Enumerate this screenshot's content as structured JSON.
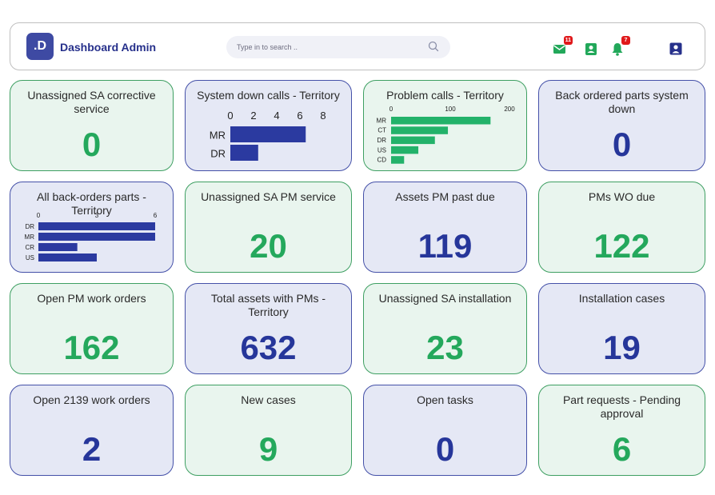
{
  "header": {
    "logo_text": ".D",
    "title": "Dashboard Admin",
    "search_placeholder": "Type in to search ..",
    "mail_badge": "11",
    "bell_badge": "7"
  },
  "colors": {
    "green": "#24a85c",
    "blue": "#26369a",
    "bar_blue": "#2b3aa0",
    "bar_green": "#23b26a",
    "badge": "#e0191b"
  },
  "icons": {
    "mail": "mail-icon",
    "contact": "contact-icon",
    "bell": "bell-icon",
    "user": "user-icon",
    "search": "search-icon"
  },
  "cards": [
    {
      "title": "Unassigned SA corrective service",
      "value": "0",
      "theme": "green"
    },
    {
      "title": "System down calls - Territory",
      "theme": "blue",
      "chart": 0
    },
    {
      "title": "Problem calls - Territory",
      "theme": "green",
      "chart": 1
    },
    {
      "title": "Back ordered parts system down",
      "value": "0",
      "theme": "blue"
    },
    {
      "title": "All back-orders parts - Territory",
      "theme": "blue",
      "chart": 2
    },
    {
      "title": "Unassigned SA PM service",
      "value": "20",
      "theme": "green"
    },
    {
      "title": "Assets PM past due",
      "value": "119",
      "theme": "blue"
    },
    {
      "title": "PMs WO due",
      "value": "122",
      "theme": "green"
    },
    {
      "title": "Open PM work orders",
      "value": "162",
      "theme": "green"
    },
    {
      "title": "Total assets with PMs - Territory",
      "value": "632",
      "theme": "blue"
    },
    {
      "title": "Unassigned SA installation",
      "value": "23",
      "theme": "green"
    },
    {
      "title": "Installation cases",
      "value": "19",
      "theme": "blue"
    },
    {
      "title": "Open 2139 work orders",
      "value": "2",
      "theme": "blue"
    },
    {
      "title": "New cases",
      "value": "9",
      "theme": "green"
    },
    {
      "title": "Open tasks",
      "value": "0",
      "theme": "blue"
    },
    {
      "title": "Part requests - Pending approval",
      "value": "6",
      "theme": "green"
    }
  ],
  "chart_data": [
    {
      "type": "bar",
      "orientation": "horizontal",
      "title": "System down calls - Territory",
      "categories": [
        "MR",
        "DR"
      ],
      "values": [
        6.5,
        2.4
      ],
      "xticks": [
        0,
        2,
        4,
        6,
        8
      ],
      "xlim": [
        0,
        8
      ],
      "color": "#2b3aa0"
    },
    {
      "type": "bar",
      "orientation": "horizontal",
      "title": "Problem calls - Territory",
      "categories": [
        "MR",
        "CT",
        "DR",
        "US",
        "CD"
      ],
      "values": [
        168,
        96,
        74,
        46,
        22
      ],
      "xticks": [
        0,
        100,
        200
      ],
      "xlim": [
        0,
        200
      ],
      "color": "#23b26a"
    },
    {
      "type": "bar",
      "orientation": "horizontal",
      "title": "All back-orders parts - Territory",
      "categories": [
        "DR",
        "MR",
        "CR",
        "US"
      ],
      "values": [
        6,
        6,
        2,
        3
      ],
      "xticks": [
        0,
        3,
        6
      ],
      "xlim": [
        0,
        6
      ],
      "color": "#2b3aa0"
    }
  ]
}
